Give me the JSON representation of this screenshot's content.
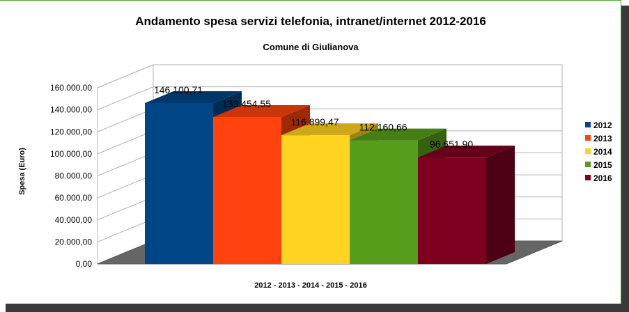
{
  "chart_data": {
    "type": "bar",
    "title": "Andamento spesa servizi telefonia, intranet/internet 2012-2016",
    "subtitle": "Comune di Giulianova",
    "xlabel": "2012 - 2013 - 2014 - 2015 - 2016",
    "ylabel": "Spesa (Euro)",
    "ylim": [
      0,
      160000
    ],
    "yticks": [
      0,
      20000,
      40000,
      60000,
      80000,
      100000,
      120000,
      140000,
      160000
    ],
    "ytick_labels": [
      "0,00",
      "20.000,00",
      "40.000,00",
      "60.000,00",
      "80.000,00",
      "100.000,00",
      "120.000,00",
      "140.000,00",
      "160.000,00"
    ],
    "grid": true,
    "three_d": true,
    "legend_position": "right",
    "series": [
      {
        "name": "2012",
        "value": 146100.71,
        "label": "146.100,71",
        "color": "#004586"
      },
      {
        "name": "2013",
        "value": 133454.55,
        "label": "133.454,55",
        "color": "#ff420e"
      },
      {
        "name": "2014",
        "value": 116899.47,
        "label": "116.899,47",
        "color": "#ffd320"
      },
      {
        "name": "2015",
        "value": 112160.66,
        "label": "112.160,66",
        "color": "#579d1c"
      },
      {
        "name": "2016",
        "value": 96651.9,
        "label": "96.651,90",
        "color": "#7e0021"
      }
    ]
  }
}
